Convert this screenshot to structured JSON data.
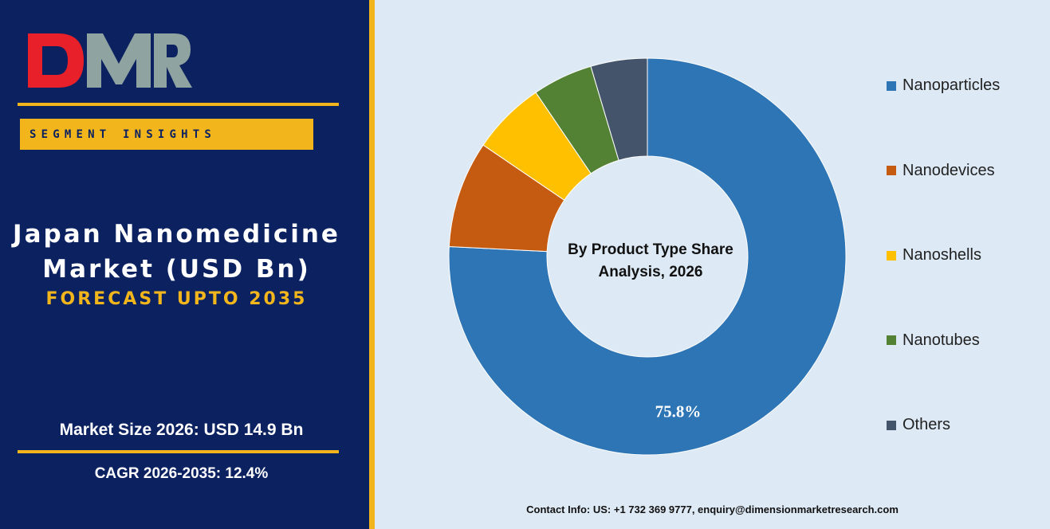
{
  "brand": {
    "logo_text": "DMR"
  },
  "sidebar": {
    "segment_label": "SEGMENT INSIGHTS",
    "title_line1": "Japan Nanomedicine",
    "title_line2": "Market (USD Bn)",
    "forecast": "FORECAST UPTO 2035",
    "market_size": "Market Size 2026: USD 14.9 Bn",
    "cagr": "CAGR 2026-2035: 12.4%"
  },
  "colors": {
    "panel_bg": "#0b2160",
    "accent": "#f2b61c",
    "chart_bg": "#dde9f4",
    "logo_red": "#e8202a",
    "logo_gray": "#8fa3a0"
  },
  "chart_data": {
    "type": "pie",
    "variant": "donut",
    "center_label_line1": "By Product Type Share",
    "center_label_line2": "Analysis, 2026",
    "slices": [
      {
        "label": "Nanoparticles",
        "value": 75.8,
        "color": "#2e75b6",
        "data_label": "75.8%"
      },
      {
        "label": "Nanodevices",
        "value": 8.7,
        "color": "#c55a11",
        "data_label": ""
      },
      {
        "label": "Nanoshells",
        "value": 6.0,
        "color": "#ffc000",
        "data_label": ""
      },
      {
        "label": "Nanotubes",
        "value": 4.9,
        "color": "#548235",
        "data_label": ""
      },
      {
        "label": "Others",
        "value": 4.6,
        "color": "#44546a",
        "data_label": ""
      }
    ],
    "legend_position": "right"
  },
  "footer": {
    "contact": "Contact Info: US: +1 732 369 9777, enquiry@dimensionmarketresearch.com"
  }
}
